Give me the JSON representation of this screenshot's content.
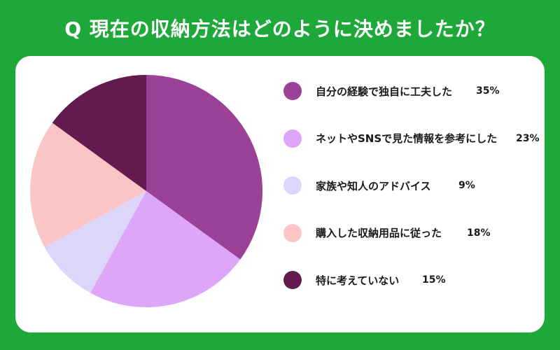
{
  "title": "Q 現在の収納方法はどのように決めましたか？",
  "chart_data": {
    "type": "pie",
    "title": "Q 現在の収納方法はどのように決めましたか？",
    "legend_position": "right",
    "slices": [
      {
        "label": "自分の経験で独自に工夫した",
        "value": 35,
        "value_label": "35%",
        "color": "#9b4197"
      },
      {
        "label": "ネットやSNSで見た情報を参考にした",
        "value": 23,
        "value_label": "23%",
        "color": "#dea6f9"
      },
      {
        "label": "家族や知人のアドバイス",
        "value": 9,
        "value_label": "9%",
        "color": "#dcd6fb"
      },
      {
        "label": "購入した収納用品に従った",
        "value": 18,
        "value_label": "18%",
        "color": "#fcc5c5"
      },
      {
        "label": "特に考えていない",
        "value": 15,
        "value_label": "15%",
        "color": "#621a4f"
      }
    ]
  }
}
